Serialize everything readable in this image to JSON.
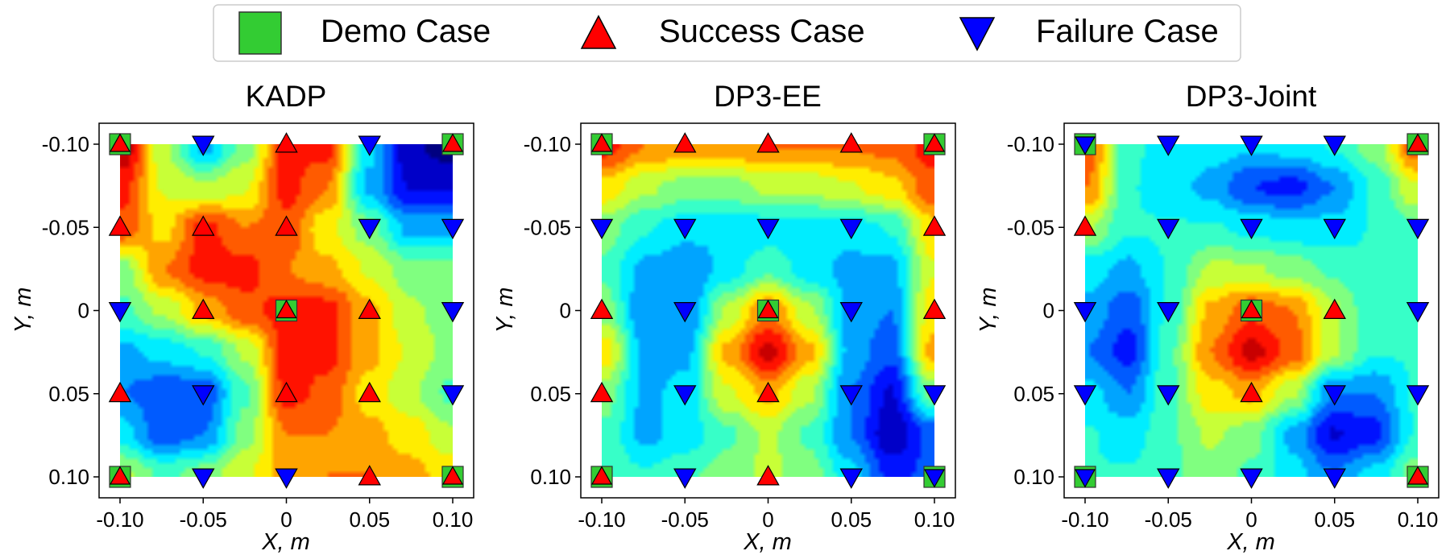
{
  "legend": {
    "location": "top-center",
    "items": [
      {
        "label": "Demo Case",
        "marker": "square",
        "color": "#33cc33"
      },
      {
        "label": "Success Case",
        "marker": "triangle-up",
        "color": "#ff0000"
      },
      {
        "label": "Failure Case",
        "marker": "triangle-down",
        "color": "#0000ff"
      }
    ]
  },
  "chart_data": [
    {
      "type": "heatmap",
      "title": "KADP",
      "xlabel": "X, m",
      "ylabel": "Y, m",
      "xlim": [
        -0.1,
        0.1
      ],
      "ylim": [
        -0.1,
        0.1
      ],
      "y_inverted": true,
      "xticks": [
        "-0.10",
        "-0.05",
        "0",
        "0.05",
        "0.10"
      ],
      "yticks": [
        "-0.10",
        "-0.05",
        "0",
        "0.05",
        "0.10"
      ],
      "grid": [
        [
          0.95,
          0.55,
          0.3,
          0.5,
          0.85,
          0.85,
          0.35,
          0.05,
          0.0
        ],
        [
          0.85,
          0.6,
          0.55,
          0.6,
          0.85,
          0.75,
          0.3,
          0.1,
          0.1
        ],
        [
          0.8,
          0.65,
          0.85,
          0.75,
          0.8,
          0.62,
          0.5,
          0.3,
          0.3
        ],
        [
          0.5,
          0.75,
          0.85,
          0.85,
          0.75,
          0.7,
          0.6,
          0.5,
          0.5
        ],
        [
          0.45,
          0.55,
          0.7,
          0.8,
          0.85,
          0.85,
          0.7,
          0.55,
          0.5
        ],
        [
          0.3,
          0.35,
          0.4,
          0.55,
          0.85,
          0.85,
          0.7,
          0.6,
          0.5
        ],
        [
          0.25,
          0.2,
          0.2,
          0.45,
          0.85,
          0.8,
          0.65,
          0.55,
          0.45
        ],
        [
          0.35,
          0.2,
          0.25,
          0.5,
          0.75,
          0.75,
          0.7,
          0.65,
          0.55
        ],
        [
          0.55,
          0.45,
          0.5,
          0.6,
          0.7,
          0.75,
          0.75,
          0.7,
          0.65
        ]
      ],
      "points": [
        {
          "x": -0.1,
          "y": -0.1,
          "case": "demo",
          "result": "success"
        },
        {
          "x": -0.05,
          "y": -0.1,
          "case": "failure"
        },
        {
          "x": 0,
          "y": -0.1,
          "case": "success"
        },
        {
          "x": 0.05,
          "y": -0.1,
          "case": "failure"
        },
        {
          "x": 0.1,
          "y": -0.1,
          "case": "demo",
          "result": "success"
        },
        {
          "x": -0.1,
          "y": -0.05,
          "case": "success"
        },
        {
          "x": -0.05,
          "y": -0.05,
          "case": "success"
        },
        {
          "x": 0,
          "y": -0.05,
          "case": "success"
        },
        {
          "x": 0.05,
          "y": -0.05,
          "case": "failure"
        },
        {
          "x": 0.1,
          "y": -0.05,
          "case": "failure"
        },
        {
          "x": -0.1,
          "y": 0,
          "case": "failure"
        },
        {
          "x": -0.05,
          "y": 0,
          "case": "success"
        },
        {
          "x": 0,
          "y": 0,
          "case": "demo",
          "result": "success"
        },
        {
          "x": 0.05,
          "y": 0,
          "case": "success"
        },
        {
          "x": 0.1,
          "y": 0,
          "case": "failure"
        },
        {
          "x": -0.1,
          "y": 0.05,
          "case": "success"
        },
        {
          "x": -0.05,
          "y": 0.05,
          "case": "failure"
        },
        {
          "x": 0,
          "y": 0.05,
          "case": "success"
        },
        {
          "x": 0.05,
          "y": 0.05,
          "case": "success"
        },
        {
          "x": 0.1,
          "y": 0.05,
          "case": "failure"
        },
        {
          "x": -0.1,
          "y": 0.1,
          "case": "demo",
          "result": "success"
        },
        {
          "x": -0.05,
          "y": 0.1,
          "case": "failure"
        },
        {
          "x": 0,
          "y": 0.1,
          "case": "failure"
        },
        {
          "x": 0.05,
          "y": 0.1,
          "case": "success"
        },
        {
          "x": 0.1,
          "y": 0.1,
          "case": "demo",
          "result": "success"
        }
      ]
    },
    {
      "type": "heatmap",
      "title": "DP3-EE",
      "xlabel": "X, m",
      "ylabel": "Y, m",
      "xlim": [
        -0.1,
        0.1
      ],
      "ylim": [
        -0.1,
        0.1
      ],
      "y_inverted": true,
      "xticks": [
        "-0.10",
        "-0.05",
        "0",
        "0.05",
        "0.10"
      ],
      "yticks": [
        "-0.10",
        "-0.05",
        "0",
        "0.05",
        "0.10"
      ],
      "grid": [
        [
          0.85,
          0.75,
          0.72,
          0.72,
          0.75,
          0.75,
          0.75,
          0.78,
          0.85
        ],
        [
          0.65,
          0.55,
          0.5,
          0.5,
          0.55,
          0.55,
          0.6,
          0.65,
          0.8
        ],
        [
          0.5,
          0.4,
          0.35,
          0.33,
          0.35,
          0.35,
          0.35,
          0.4,
          0.65
        ],
        [
          0.45,
          0.3,
          0.25,
          0.35,
          0.45,
          0.35,
          0.3,
          0.3,
          0.6
        ],
        [
          0.5,
          0.25,
          0.25,
          0.55,
          0.75,
          0.55,
          0.3,
          0.25,
          0.65
        ],
        [
          0.65,
          0.3,
          0.3,
          0.7,
          0.92,
          0.7,
          0.3,
          0.2,
          0.7
        ],
        [
          0.5,
          0.3,
          0.35,
          0.6,
          0.7,
          0.55,
          0.25,
          0.1,
          0.5
        ],
        [
          0.45,
          0.3,
          0.35,
          0.45,
          0.55,
          0.45,
          0.25,
          0.05,
          0.2
        ],
        [
          0.45,
          0.4,
          0.45,
          0.5,
          0.55,
          0.5,
          0.35,
          0.15,
          0.2
        ]
      ],
      "points": [
        {
          "x": -0.1,
          "y": -0.1,
          "case": "demo",
          "result": "success"
        },
        {
          "x": -0.05,
          "y": -0.1,
          "case": "success"
        },
        {
          "x": 0,
          "y": -0.1,
          "case": "success"
        },
        {
          "x": 0.05,
          "y": -0.1,
          "case": "success"
        },
        {
          "x": 0.1,
          "y": -0.1,
          "case": "demo",
          "result": "success"
        },
        {
          "x": -0.1,
          "y": -0.05,
          "case": "failure"
        },
        {
          "x": -0.05,
          "y": -0.05,
          "case": "failure"
        },
        {
          "x": 0,
          "y": -0.05,
          "case": "failure"
        },
        {
          "x": 0.05,
          "y": -0.05,
          "case": "failure"
        },
        {
          "x": 0.1,
          "y": -0.05,
          "case": "success"
        },
        {
          "x": -0.1,
          "y": 0,
          "case": "success"
        },
        {
          "x": -0.05,
          "y": 0,
          "case": "failure"
        },
        {
          "x": 0,
          "y": 0,
          "case": "demo",
          "result": "success"
        },
        {
          "x": 0.05,
          "y": 0,
          "case": "failure"
        },
        {
          "x": 0.1,
          "y": 0,
          "case": "success"
        },
        {
          "x": -0.1,
          "y": 0.05,
          "case": "success"
        },
        {
          "x": -0.05,
          "y": 0.05,
          "case": "failure"
        },
        {
          "x": 0,
          "y": 0.05,
          "case": "success"
        },
        {
          "x": 0.05,
          "y": 0.05,
          "case": "failure"
        },
        {
          "x": 0.1,
          "y": 0.05,
          "case": "failure"
        },
        {
          "x": -0.1,
          "y": 0.1,
          "case": "demo",
          "result": "success"
        },
        {
          "x": -0.05,
          "y": 0.1,
          "case": "failure"
        },
        {
          "x": 0,
          "y": 0.1,
          "case": "success"
        },
        {
          "x": 0.05,
          "y": 0.1,
          "case": "failure"
        },
        {
          "x": 0.1,
          "y": 0.1,
          "case": "demo",
          "result": "failure"
        }
      ]
    },
    {
      "type": "heatmap",
      "title": "DP3-Joint",
      "xlabel": "X, m",
      "ylabel": "Y, m",
      "xlim": [
        -0.1,
        0.1
      ],
      "ylim": [
        -0.1,
        0.1
      ],
      "y_inverted": true,
      "xticks": [
        "-0.10",
        "-0.05",
        "0",
        "0.05",
        "0.10"
      ],
      "yticks": [
        "-0.10",
        "-0.05",
        "0",
        "0.05",
        "0.10"
      ],
      "grid": [
        [
          0.8,
          0.4,
          0.38,
          0.35,
          0.33,
          0.35,
          0.4,
          0.5,
          0.8
        ],
        [
          0.75,
          0.4,
          0.35,
          0.3,
          0.18,
          0.15,
          0.25,
          0.4,
          0.6
        ],
        [
          0.55,
          0.4,
          0.4,
          0.4,
          0.38,
          0.35,
          0.35,
          0.4,
          0.45
        ],
        [
          0.35,
          0.3,
          0.4,
          0.55,
          0.55,
          0.5,
          0.45,
          0.4,
          0.4
        ],
        [
          0.3,
          0.2,
          0.4,
          0.7,
          0.8,
          0.75,
          0.55,
          0.4,
          0.4
        ],
        [
          0.25,
          0.15,
          0.45,
          0.75,
          0.92,
          0.8,
          0.55,
          0.4,
          0.4
        ],
        [
          0.35,
          0.25,
          0.45,
          0.65,
          0.7,
          0.55,
          0.25,
          0.25,
          0.4
        ],
        [
          0.4,
          0.35,
          0.45,
          0.55,
          0.5,
          0.3,
          0.1,
          0.15,
          0.4
        ],
        [
          0.4,
          0.4,
          0.45,
          0.5,
          0.45,
          0.35,
          0.25,
          0.35,
          0.5
        ]
      ],
      "points": [
        {
          "x": -0.1,
          "y": -0.1,
          "case": "demo",
          "result": "failure"
        },
        {
          "x": -0.05,
          "y": -0.1,
          "case": "failure"
        },
        {
          "x": 0,
          "y": -0.1,
          "case": "failure"
        },
        {
          "x": 0.05,
          "y": -0.1,
          "case": "failure"
        },
        {
          "x": 0.1,
          "y": -0.1,
          "case": "demo",
          "result": "success"
        },
        {
          "x": -0.1,
          "y": -0.05,
          "case": "success"
        },
        {
          "x": -0.05,
          "y": -0.05,
          "case": "failure"
        },
        {
          "x": 0,
          "y": -0.05,
          "case": "failure"
        },
        {
          "x": 0.05,
          "y": -0.05,
          "case": "failure"
        },
        {
          "x": 0.1,
          "y": -0.05,
          "case": "failure"
        },
        {
          "x": -0.1,
          "y": 0,
          "case": "failure"
        },
        {
          "x": -0.05,
          "y": 0,
          "case": "failure"
        },
        {
          "x": 0,
          "y": 0,
          "case": "demo",
          "result": "success"
        },
        {
          "x": 0.05,
          "y": 0,
          "case": "success"
        },
        {
          "x": 0.1,
          "y": 0,
          "case": "failure"
        },
        {
          "x": -0.1,
          "y": 0.05,
          "case": "failure"
        },
        {
          "x": -0.05,
          "y": 0.05,
          "case": "failure"
        },
        {
          "x": 0,
          "y": 0.05,
          "case": "success"
        },
        {
          "x": 0.05,
          "y": 0.05,
          "case": "failure"
        },
        {
          "x": 0.1,
          "y": 0.05,
          "case": "failure"
        },
        {
          "x": -0.1,
          "y": 0.1,
          "case": "demo",
          "result": "failure"
        },
        {
          "x": -0.05,
          "y": 0.1,
          "case": "failure"
        },
        {
          "x": 0,
          "y": 0.1,
          "case": "failure"
        },
        {
          "x": 0.05,
          "y": 0.1,
          "case": "failure"
        },
        {
          "x": 0.1,
          "y": 0.1,
          "case": "demo",
          "result": "success"
        }
      ]
    }
  ]
}
